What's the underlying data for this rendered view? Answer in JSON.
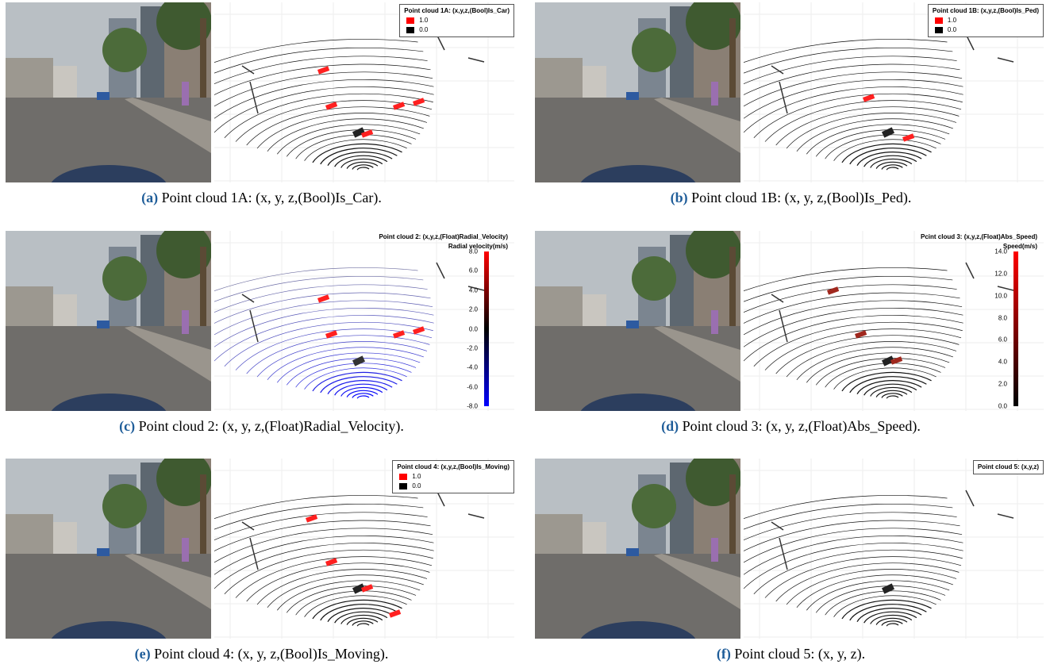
{
  "panels": [
    {
      "label": "(a)",
      "caption": "Point cloud 1A: (x, y, z,(Bool)Is_Car).",
      "legend": {
        "title": "Point cloud 1A: (x,y,z,(Bool)Is_Car)",
        "entries": [
          "1.0",
          "0.0"
        ]
      }
    },
    {
      "label": "(b)",
      "caption": "Point cloud 1B: (x, y, z,(Bool)Is_Ped).",
      "legend": {
        "title": "Point cloud 1B: (x,y,z,(Bool)Is_Ped)",
        "entries": [
          "1.0",
          "0.0"
        ]
      }
    },
    {
      "label": "(c)",
      "caption": "Point cloud 2: (x, y, z,(Float)Radial_Velocity).",
      "colorbar": {
        "title": "Point cloud 2: (x,y,z,(Float)Radial_Velocity)",
        "unit": "Radial velocity(m/s)",
        "ticks": [
          "8.0",
          "6.0",
          "4.0",
          "2.0",
          "0.0",
          "-2.0",
          "-4.0",
          "-6.0",
          "-8.0"
        ]
      }
    },
    {
      "label": "(d)",
      "caption": "Point cloud 3: (x, y, z,(Float)Abs_Speed).",
      "colorbar": {
        "title": "Pcint cloud 3: (x,y,z,(Float)Abs_Speed)",
        "unit": "Speed(m/s)",
        "ticks": [
          "14.0",
          "12.0",
          "10.0",
          "8.0",
          "6.0",
          "4.0",
          "2.0",
          "0.0"
        ]
      }
    },
    {
      "label": "(e)",
      "caption": "Point cloud 4: (x, y, z,(Bool)Is_Moving).",
      "legend": {
        "title": "Point cloud 4: (x,y,z,(Bool)Is_Moving)",
        "entries": [
          "1.0",
          "0.0"
        ]
      }
    },
    {
      "label": "(f)",
      "caption": "Point cloud 5: (x, y, z).",
      "legend": {
        "title": "Point cloud 5: (x,y,z)",
        "entries": []
      }
    }
  ]
}
